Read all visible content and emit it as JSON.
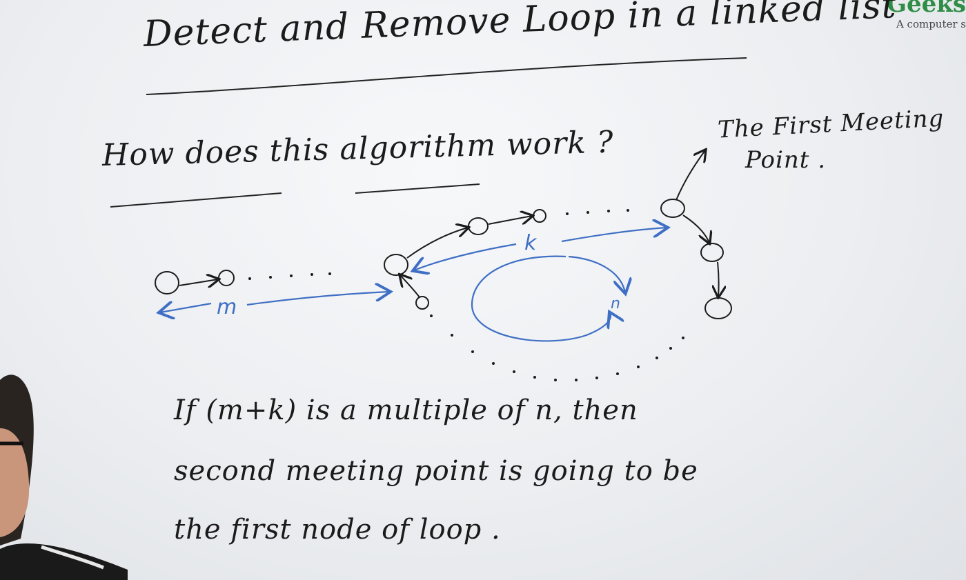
{
  "title": "Detect and Remove Loop in a linked list",
  "question": "How does this algorithm work ?",
  "first_meeting_label": [
    "The First Meeting",
    "Point ."
  ],
  "labels": {
    "m": "m",
    "k": "k",
    "n": "n"
  },
  "condition_lines": [
    "If (m+k) is a multiple of n, then",
    "second meeting point is going to be",
    "the first node of loop ."
  ],
  "watermark": {
    "brand": "Geeks",
    "tagline": "A computer s"
  },
  "colors": {
    "ink": "#1b1b1b",
    "marker_blue": "#3f6fc4",
    "brand_green": "#2f8d46"
  }
}
